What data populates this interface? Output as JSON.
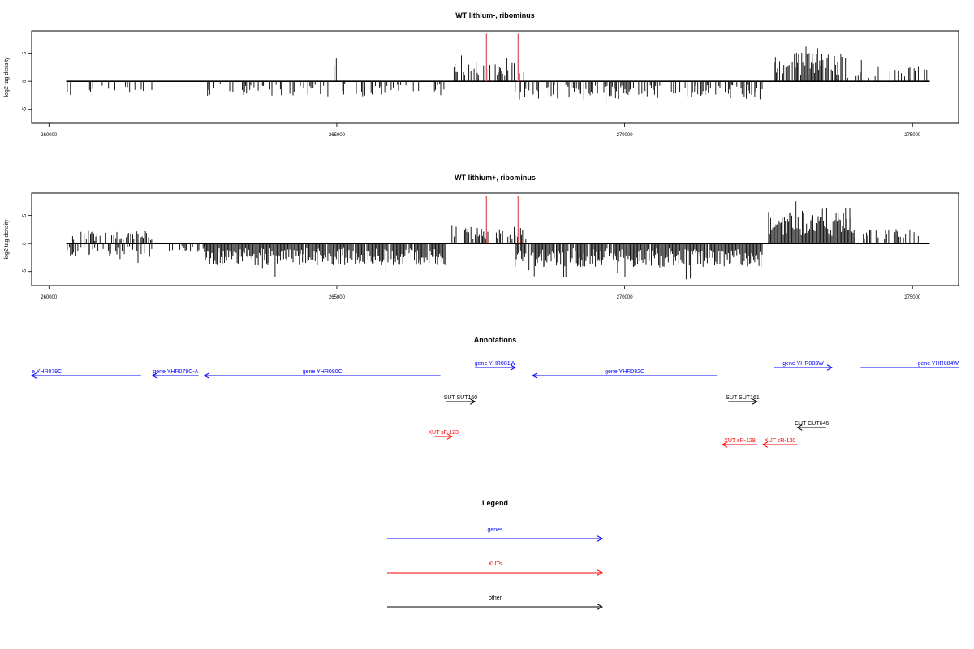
{
  "chart_data": [
    {
      "type": "bar",
      "title": "WT lithium-, ribominus",
      "ylabel": "log2 tag density",
      "xlim": [
        259700,
        275800
      ],
      "ylim": [
        -7.5,
        9.0
      ],
      "x_ticks": [
        260000,
        265000,
        270000,
        275000
      ],
      "x_tick_labels": [
        "260000",
        "265000",
        "270000",
        "275000"
      ],
      "y_ticks": [
        -5,
        0,
        5
      ],
      "y_tick_labels": [
        "-5",
        "0",
        "5"
      ],
      "baseline_range": [
        260300,
        275300
      ],
      "highlight_lines": [
        {
          "x": 267600,
          "y": 8.5,
          "color": "#e06060"
        },
        {
          "x": 268150,
          "y": 8.5,
          "color": "#e06060"
        }
      ],
      "segments": [
        {
          "x0": 260300,
          "x1": 260400,
          "dir": -1,
          "mean": 1.8,
          "density": 0.4
        },
        {
          "x0": 260650,
          "x1": 261800,
          "dir": -1,
          "mean": 1.6,
          "density": 0.25
        },
        {
          "x0": 262700,
          "x1": 267000,
          "dir": -1,
          "mean": 1.8,
          "density": 0.35
        },
        {
          "x0": 264900,
          "x1": 265000,
          "dir": 1,
          "mean": 2.8,
          "density": 0.1
        },
        {
          "x0": 267000,
          "x1": 268300,
          "dir": 1,
          "mean": 2.2,
          "density": 0.5
        },
        {
          "x0": 268100,
          "x1": 272400,
          "dir": -1,
          "mean": 2.2,
          "density": 0.5
        },
        {
          "x0": 272600,
          "x1": 273800,
          "dir": 1,
          "mean": 3.5,
          "density": 0.8
        },
        {
          "x0": 273800,
          "x1": 275300,
          "dir": 1,
          "mean": 1.8,
          "density": 0.2
        }
      ]
    },
    {
      "type": "bar",
      "title": "WT lithium+, ribominus",
      "ylabel": "log2 tag density",
      "xlim": [
        259700,
        275800
      ],
      "ylim": [
        -7.5,
        9.0
      ],
      "x_ticks": [
        260000,
        265000,
        270000,
        275000
      ],
      "x_tick_labels": [
        "260000",
        "265000",
        "270000",
        "275000"
      ],
      "y_ticks": [
        -5,
        0,
        5
      ],
      "y_tick_labels": [
        "-5",
        "0",
        "5"
      ],
      "baseline_range": [
        260300,
        275300
      ],
      "highlight_lines": [
        {
          "x": 267600,
          "y": 8.5,
          "color": "#e06060"
        },
        {
          "x": 268150,
          "y": 8.5,
          "color": "#e06060"
        }
      ],
      "segments": [
        {
          "x0": 260300,
          "x1": 261800,
          "dir": 1,
          "mean": 1.5,
          "density": 0.45
        },
        {
          "x0": 260300,
          "x1": 261800,
          "dir": -1,
          "mean": 1.6,
          "density": 0.45
        },
        {
          "x0": 262000,
          "x1": 262700,
          "dir": -1,
          "mean": 1.0,
          "density": 0.2
        },
        {
          "x0": 262700,
          "x1": 266900,
          "dir": -1,
          "mean": 2.6,
          "density": 0.95
        },
        {
          "x0": 267000,
          "x1": 268300,
          "dir": 1,
          "mean": 2.0,
          "density": 0.6
        },
        {
          "x0": 268100,
          "x1": 272400,
          "dir": -1,
          "mean": 2.8,
          "density": 0.95
        },
        {
          "x0": 269400,
          "x1": 269500,
          "dir": 1,
          "mean": 0.8,
          "density": 0.1
        },
        {
          "x0": 272500,
          "x1": 274000,
          "dir": 1,
          "mean": 4.2,
          "density": 1.0
        },
        {
          "x0": 274000,
          "x1": 275300,
          "dir": 1,
          "mean": 1.8,
          "density": 0.4
        }
      ]
    }
  ],
  "annotations": {
    "title": "Annotations",
    "features": [
      {
        "label": "e YHR079C",
        "x0": 259700,
        "x1": 261600,
        "dir": -1,
        "row": 1,
        "kind": "gene"
      },
      {
        "label": "gene YHR079C-A",
        "x0": 261800,
        "x1": 262600,
        "dir": -1,
        "row": 1,
        "kind": "gene"
      },
      {
        "label": "gene YHR080C",
        "x0": 262700,
        "x1": 266800,
        "dir": -1,
        "row": 1,
        "kind": "gene"
      },
      {
        "label": "gene YHR081W",
        "x0": 267400,
        "x1": 268100,
        "dir": 1,
        "row": 0,
        "kind": "gene"
      },
      {
        "label": "gene YHR082C",
        "x0": 268400,
        "x1": 271600,
        "dir": -1,
        "row": 1,
        "kind": "gene"
      },
      {
        "label": "gene YHR083W",
        "x0": 272600,
        "x1": 273600,
        "dir": 1,
        "row": 0,
        "kind": "gene"
      },
      {
        "label": "gene YHR084W",
        "x0": 274100,
        "x1": 275800,
        "dir": 1,
        "row": 0,
        "kind": "gene"
      },
      {
        "label": "SUT SUT160",
        "x0": 266900,
        "x1": 267400,
        "dir": 1,
        "row": 2,
        "kind": "other"
      },
      {
        "label": "SUT SUT161",
        "x0": 271800,
        "x1": 272300,
        "dir": 1,
        "row": 2,
        "kind": "other"
      },
      {
        "label": "CUT CUT646",
        "x0": 273000,
        "x1": 273500,
        "dir": -1,
        "row": 3,
        "kind": "other"
      },
      {
        "label": "XUT sF-123",
        "x0": 266700,
        "x1": 267000,
        "dir": 1,
        "row": 4,
        "kind": "xut"
      },
      {
        "label": "XUT sR-129",
        "x0": 271700,
        "x1": 272300,
        "dir": -1,
        "row": 5,
        "kind": "xut"
      },
      {
        "label": "XUT sR-130",
        "x0": 272400,
        "x1": 273000,
        "dir": -1,
        "row": 5,
        "kind": "xut"
      }
    ]
  },
  "legend": {
    "title": "Legend",
    "items": [
      {
        "label": "genes",
        "color": "#0000ff"
      },
      {
        "label": "XUTs",
        "color": "#ff0000"
      },
      {
        "label": "other",
        "color": "#000000"
      }
    ]
  },
  "colors": {
    "gene": "#0000ff",
    "xut": "#ff0000",
    "other": "#000000",
    "highlight": "#e06060"
  }
}
